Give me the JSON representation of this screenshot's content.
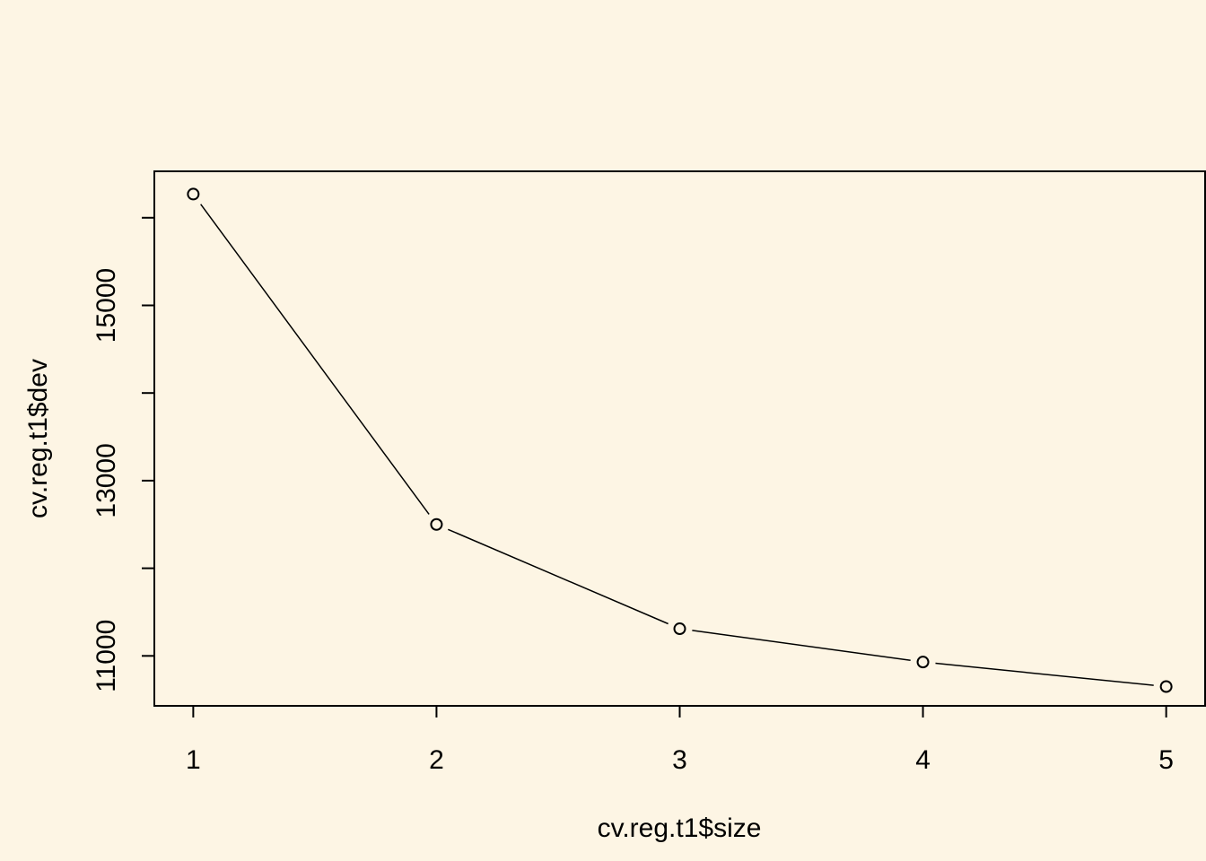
{
  "chart_data": {
    "type": "line",
    "xlabel": "cv.reg.t1$size",
    "ylabel": "cv.reg.t1$dev",
    "x": [
      1,
      2,
      3,
      4,
      5
    ],
    "series": [
      {
        "values": [
          16270,
          12500,
          11310,
          10930,
          10650
        ]
      }
    ],
    "x_ticks": [
      "1",
      "2",
      "3",
      "4",
      "5"
    ],
    "y_ticks": [
      11000,
      12000,
      13000,
      14000,
      15000,
      16000
    ],
    "y_tick_labels": [
      {
        "value": 11000,
        "label": "11000"
      },
      {
        "value": 13000,
        "label": "13000"
      },
      {
        "value": 15000,
        "label": "15000"
      }
    ],
    "xlim": [
      0.84,
      5.16
    ],
    "ylim": [
      10430,
      16530
    ],
    "marker": "open-circle",
    "line_style": "solid-with-gaps",
    "grid": false,
    "legend": "none"
  },
  "colors": {
    "background": "#FDF5E4",
    "ink": "#000000"
  }
}
